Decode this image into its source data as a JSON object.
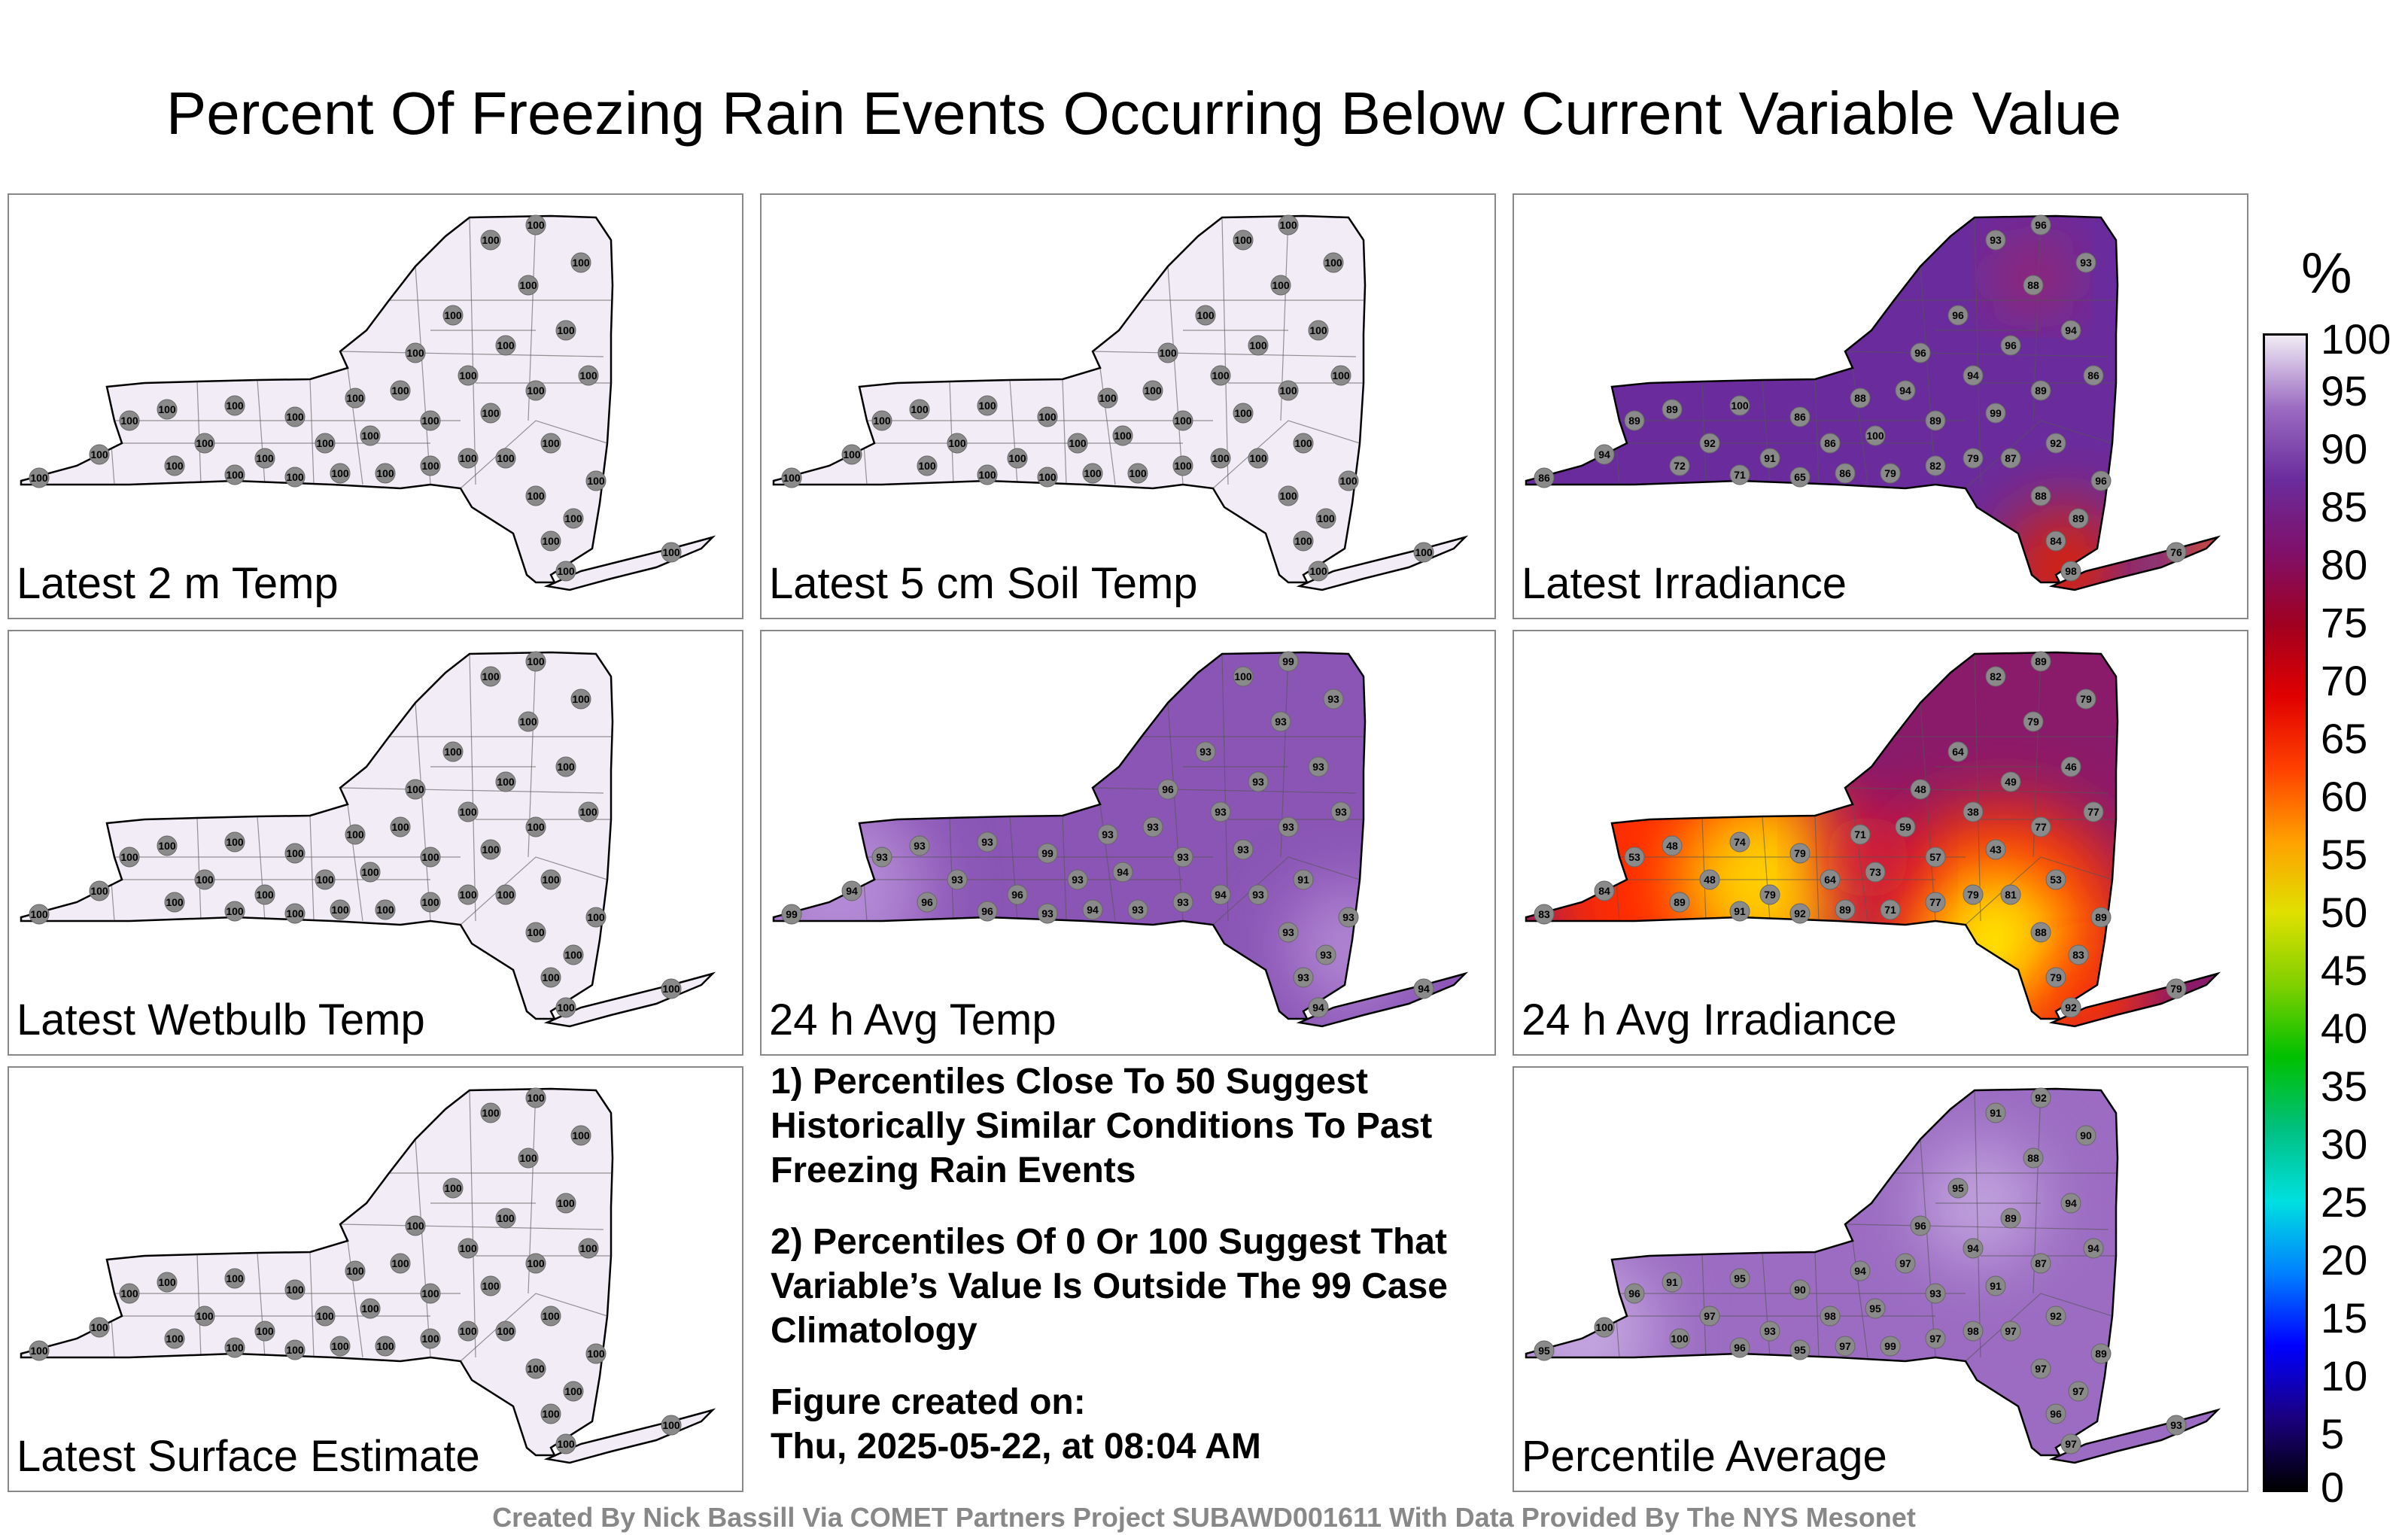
{
  "title": "Percent Of Freezing Rain Events Occurring Below Current Variable Value",
  "panels": [
    {
      "id": "p1",
      "label": "Latest 2 m Temp",
      "fill": "#f1ecf5",
      "station_values": [
        100,
        100,
        100,
        100,
        100,
        100,
        100,
        100,
        100,
        100,
        100,
        100,
        100,
        100,
        100,
        100,
        100,
        100,
        100,
        100,
        100,
        100,
        100,
        100,
        100,
        100,
        100,
        100,
        100,
        100,
        100,
        100,
        100,
        100,
        100,
        100,
        100,
        100,
        100,
        100
      ]
    },
    {
      "id": "p2",
      "label": "Latest 5 cm Soil Temp",
      "fill": "#f1ecf5",
      "station_values": [
        100,
        100,
        100,
        100,
        100,
        100,
        100,
        100,
        100,
        100,
        100,
        100,
        100,
        100,
        100,
        100,
        100,
        100,
        100,
        100,
        100,
        100,
        100,
        100,
        100,
        100,
        100,
        100,
        100,
        100,
        100,
        100,
        100,
        100,
        100,
        100,
        100,
        100,
        100,
        100
      ]
    },
    {
      "id": "p3",
      "label": "Latest Irradiance",
      "fill": "#6a2c9c",
      "station_values": [
        86,
        94,
        89,
        89,
        92,
        100,
        91,
        86,
        86,
        88,
        100,
        94,
        96,
        89,
        96,
        94,
        99,
        96,
        88,
        89,
        92,
        94,
        93,
        86,
        96,
        89,
        84,
        88,
        87,
        79,
        82,
        79,
        86,
        65,
        71,
        72,
        98,
        76,
        93,
        96
      ]
    },
    {
      "id": "p4",
      "label": "Latest Wetbulb Temp",
      "fill": "#f1ecf5",
      "station_values": [
        100,
        100,
        100,
        100,
        100,
        100,
        100,
        100,
        100,
        100,
        100,
        100,
        100,
        100,
        100,
        100,
        100,
        100,
        100,
        100,
        100,
        100,
        100,
        100,
        100,
        100,
        100,
        100,
        100,
        100,
        100,
        100,
        100,
        100,
        100,
        100,
        100,
        100,
        100,
        100
      ]
    },
    {
      "id": "p5",
      "label": "24 h Avg Temp",
      "fill": "#8a55b5",
      "station_values": [
        99,
        94,
        93,
        93,
        93,
        93,
        96,
        99,
        93,
        93,
        94,
        93,
        96,
        93,
        93,
        93,
        93,
        93,
        93,
        93,
        91,
        93,
        93,
        93,
        93,
        93,
        93,
        93,
        93,
        94,
        93,
        93,
        94,
        93,
        96,
        96,
        94,
        94,
        100,
        99
      ]
    },
    {
      "id": "p6",
      "label": "24 h Avg Irradiance",
      "fill": "#8a1a6a",
      "station_values": [
        83,
        84,
        53,
        48,
        48,
        74,
        79,
        79,
        64,
        71,
        73,
        59,
        48,
        57,
        64,
        38,
        43,
        49,
        79,
        77,
        53,
        46,
        79,
        77,
        89,
        83,
        79,
        88,
        81,
        79,
        77,
        71,
        89,
        92,
        91,
        89,
        92,
        79,
        82,
        89
      ]
    },
    {
      "id": "p7",
      "label": "Latest Surface Estimate",
      "fill": "#f1ecf5",
      "station_values": [
        100,
        100,
        100,
        100,
        100,
        100,
        100,
        100,
        100,
        100,
        100,
        100,
        100,
        100,
        100,
        100,
        100,
        100,
        100,
        100,
        100,
        100,
        100,
        100,
        100,
        100,
        100,
        100,
        100,
        100,
        100,
        100,
        100,
        100,
        100,
        100,
        100,
        100,
        100,
        100
      ]
    },
    {
      "id": "p9",
      "label": "Percentile Average",
      "fill": "#9b6cc2",
      "station_values": [
        95,
        100,
        96,
        91,
        97,
        95,
        93,
        90,
        98,
        94,
        95,
        97,
        96,
        93,
        95,
        94,
        91,
        89,
        88,
        87,
        92,
        94,
        90,
        94,
        89,
        97,
        96,
        97,
        97,
        98,
        97,
        99,
        97,
        95,
        96,
        100,
        97,
        93,
        91,
        92
      ]
    }
  ],
  "notes": [
    "1) Percentiles Close To 50 Suggest Historically Similar Conditions To Past Freezing Rain Events",
    "2) Percentiles Of 0 Or 100 Suggest That Variable’s Value Is Outside The 99 Case Climatology",
    "Figure created on:",
    "Thu, 2025-05-22, at 08:04 AM"
  ],
  "colorbar": {
    "unit": "%",
    "ticks": [
      "100",
      "95",
      "90",
      "85",
      "80",
      "75",
      "70",
      "65",
      "60",
      "55",
      "50",
      "45",
      "40",
      "35",
      "30",
      "25",
      "20",
      "15",
      "10",
      "5",
      "0"
    ],
    "colors": [
      "#000000",
      "#1a0080",
      "#0000ff",
      "#0080ff",
      "#00e0e0",
      "#00c080",
      "#00c000",
      "#80d000",
      "#e0e000",
      "#ffa000",
      "#ff4000",
      "#e00000",
      "#a00020",
      "#80106a",
      "#6a2c9c",
      "#9b6cc2",
      "#f1ecf5"
    ]
  },
  "credit": "Created By Nick Bassill Via COMET Partners Project SUBAWD001611 With Data Provided By The NYS Mesonet"
}
